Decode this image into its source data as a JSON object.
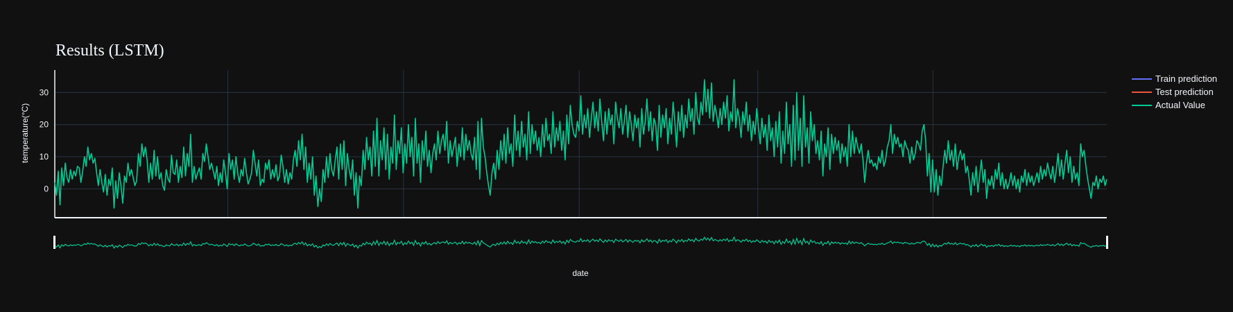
{
  "chart_data": {
    "type": "line",
    "title": "Results (LSTM)",
    "xlabel": "date",
    "ylabel": "temperature(°C)",
    "yticks": [
      0,
      10,
      20,
      30
    ],
    "ylim": [
      -9,
      37
    ],
    "grid": true,
    "legend_position": "top-right",
    "rangeslider": true,
    "series": [
      {
        "name": "Train prediction",
        "color": "#636efa",
        "values": []
      },
      {
        "name": "Test prediction",
        "color": "#ef553b",
        "values": []
      },
      {
        "name": "Actual Value",
        "color": "#00cc96",
        "values": [
          2.0,
          -2.0,
          5.5,
          -5.0,
          6.5,
          1.0,
          8.0,
          3.5,
          2.0,
          6.0,
          3.0,
          5.5,
          4.0,
          7.0,
          6.5,
          2.0,
          5.5,
          10.0,
          7.0,
          13.0,
          9.0,
          11.0,
          8.0,
          9.5,
          5.0,
          1.0,
          6.0,
          2.0,
          -1.0,
          4.5,
          -2.0,
          3.0,
          1.0,
          6.5,
          -6.0,
          2.5,
          -3.0,
          5.0,
          1.0,
          -4.5,
          4.0,
          2.0,
          8.0,
          4.0,
          6.0,
          3.5,
          1.0,
          2.5,
          11.0,
          7.0,
          14.0,
          10.0,
          13.0,
          9.0,
          2.0,
          8.0,
          3.0,
          12.0,
          4.0,
          10.0,
          3.0,
          5.0,
          1.0,
          -0.5,
          6.0,
          3.0,
          2.0,
          10.5,
          5.0,
          4.5,
          9.0,
          2.0,
          7.0,
          3.5,
          13.0,
          4.0,
          11.0,
          7.0,
          17.0,
          2.0,
          7.0,
          3.0,
          5.0,
          6.5,
          3.0,
          11.0,
          8.5,
          14.0,
          10.0,
          6.0,
          8.0,
          5.5,
          3.0,
          7.0,
          1.0,
          5.0,
          2.0,
          9.0,
          5.0,
          0.0,
          11.0,
          6.0,
          9.0,
          3.0,
          10.0,
          5.0,
          2.0,
          6.0,
          4.0,
          9.5,
          5.0,
          1.5,
          3.0,
          5.0,
          12.0,
          8.0,
          4.0,
          9.0,
          1.0,
          3.0,
          2.0,
          8.0,
          6.0,
          9.0,
          3.0,
          6.0,
          3.5,
          7.5,
          2.5,
          4.0,
          10.5,
          7.0,
          2.0,
          6.0,
          1.5,
          5.0,
          3.0,
          9.0,
          12.0,
          7.0,
          15.0,
          9.0,
          17.0,
          6.0,
          13.0,
          2.0,
          8.0,
          3.0,
          10.0,
          -2.0,
          4.0,
          -5.5,
          0.0,
          -4.0,
          6.0,
          2.0,
          10.0,
          3.5,
          11.0,
          6.0,
          4.0,
          9.0,
          13.0,
          3.0,
          14.0,
          6.0,
          15.0,
          1.0,
          11.0,
          6.0,
          3.0,
          9.0,
          -2.0,
          5.0,
          -6.0,
          4.0,
          1.0,
          12.0,
          6.0,
          16.0,
          9.0,
          13.0,
          4.0,
          18.0,
          7.0,
          22.0,
          4.0,
          15.0,
          9.0,
          19.0,
          6.0,
          17.0,
          3.0,
          13.0,
          8.0,
          23.0,
          6.0,
          15.0,
          11.0,
          19.0,
          5.0,
          14.0,
          8.0,
          20.0,
          10.0,
          16.0,
          4.0,
          22.0,
          8.0,
          14.0,
          2.0,
          15.0,
          9.0,
          18.0,
          7.0,
          12.0,
          5.0,
          11.0,
          14.0,
          9.0,
          18.0,
          11.0,
          15.0,
          17.0,
          12.0,
          21.0,
          8.0,
          15.0,
          10.0,
          13.0,
          16.0,
          7.0,
          14.0,
          10.0,
          19.0,
          9.0,
          17.0,
          12.0,
          15.0,
          11.0,
          9.0,
          16.0,
          6.0,
          21.0,
          3.0,
          22.0,
          13.0,
          10.0,
          5.0,
          1.0,
          -2.0,
          5.0,
          8.0,
          3.0,
          12.0,
          6.0,
          15.0,
          9.0,
          17.0,
          8.0,
          19.0,
          11.0,
          14.0,
          7.0,
          23.0,
          12.0,
          18.0,
          10.0,
          21.0,
          13.0,
          17.0,
          9.0,
          24.0,
          11.0,
          20.0,
          14.0,
          18.0,
          12.0,
          16.0,
          10.0,
          20.0,
          13.0,
          22.0,
          15.0,
          17.0,
          11.0,
          24.0,
          13.0,
          19.0,
          15.0,
          21.0,
          12.0,
          18.0,
          9.0,
          23.0,
          14.0,
          26.0,
          20.0,
          17.0,
          16.0,
          21.0,
          18.0,
          29.0,
          17.0,
          23.0,
          19.0,
          25.0,
          16.0,
          22.0,
          27.0,
          19.0,
          24.0,
          18.0,
          28.0,
          21.0,
          15.0,
          24.0,
          17.0,
          25.0,
          20.0,
          23.0,
          14.0,
          27.0,
          22.0,
          19.0,
          25.0,
          17.0,
          21.0,
          26.0,
          16.0,
          24.0,
          20.0,
          15.0,
          23.0,
          19.0,
          22.0,
          13.0,
          25.0,
          17.0,
          21.0,
          28.0,
          18.0,
          24.0,
          15.0,
          22.0,
          20.0,
          12.0,
          26.0,
          16.0,
          23.0,
          19.0,
          25.0,
          14.0,
          22.0,
          17.0,
          27.0,
          21.0,
          13.0,
          24.0,
          18.0,
          26.0,
          16.0,
          23.0,
          19.0,
          28.0,
          21.0,
          25.0,
          17.0,
          30.0,
          22.0,
          20.0,
          27.0,
          23.0,
          34.0,
          24.0,
          31.0,
          22.0,
          33.0,
          21.0,
          26.0,
          23.0,
          19.0,
          25.0,
          20.0,
          27.0,
          22.0,
          29.0,
          18.0,
          24.0,
          21.0,
          34.0,
          19.0,
          25.0,
          22.0,
          16.0,
          24.0,
          20.0,
          27.0,
          18.0,
          23.0,
          15.0,
          21.0,
          17.0,
          25.0,
          19.0,
          14.0,
          22.0,
          16.0,
          20.0,
          12.0,
          23.0,
          15.0,
          19.0,
          10.0,
          21.0,
          13.0,
          24.0,
          8.0,
          18.0,
          11.0,
          27.0,
          14.0,
          20.0,
          7.0,
          26.0,
          9.0,
          30.0,
          12.0,
          22.0,
          7.0,
          29.0,
          13.0,
          19.0,
          8.0,
          24.0,
          15.0,
          20.0,
          11.0,
          15.0,
          9.0,
          18.0,
          4.0,
          14.0,
          10.0,
          19.0,
          6.0,
          17.0,
          11.0,
          16.0,
          12.0,
          15.0,
          8.0,
          14.0,
          10.0,
          13.0,
          7.0,
          20.0,
          10.0,
          18.0,
          11.0,
          16.0,
          13.0,
          11.0,
          14.0,
          9.0,
          2.0,
          8.0,
          12.0,
          8.0,
          9.0,
          7.0,
          8.0,
          6.0,
          10.0,
          8.0,
          12.0,
          7.0,
          9.0,
          13.0,
          15.0,
          20.0,
          11.0,
          17.0,
          14.0,
          16.0,
          13.0,
          14.0,
          10.0,
          15.0,
          13.0,
          12.0,
          8.0,
          13.0,
          9.0,
          11.0,
          15.0,
          14.0,
          12.0,
          18.0,
          20.0,
          15.0,
          4.0,
          11.0,
          -1.0,
          9.0,
          -1.0,
          6.0,
          -2.0,
          4.0,
          1.0,
          7.0,
          12.0,
          8.0,
          15.0,
          9.0,
          12.0,
          7.0,
          14.0,
          6.0,
          10.0,
          12.0,
          9.0,
          11.0,
          5.0,
          7.0,
          3.0,
          -2.0,
          5.0,
          1.0,
          7.0,
          -1.0,
          4.0,
          9.0,
          2.0,
          6.0,
          -3.0,
          3.0,
          1.0,
          4.0,
          0.0,
          6.0,
          3.0,
          8.0,
          1.0,
          5.0,
          0.0,
          3.0,
          0.0,
          2.0,
          5.0,
          1.0,
          4.0,
          0.0,
          3.0,
          -1.0,
          4.0,
          2.0,
          6.0,
          1.0,
          5.0,
          2.0,
          4.0,
          1.0,
          3.0,
          5.0,
          2.0,
          7.0,
          3.0,
          6.0,
          4.0,
          8.0,
          5.0,
          3.0,
          7.0,
          2.0,
          6.0,
          11.0,
          4.0,
          9.0,
          3.0,
          8.0,
          12.0,
          5.0,
          10.0,
          2.0,
          7.0,
          3.0,
          5.0,
          1.0,
          14.0,
          10.0,
          12.0,
          7.0,
          3.0,
          0.0,
          -3.0,
          2.0,
          1.0,
          4.0,
          0.0,
          3.0,
          2.0,
          4.0,
          1.0,
          3.0
        ]
      }
    ]
  }
}
